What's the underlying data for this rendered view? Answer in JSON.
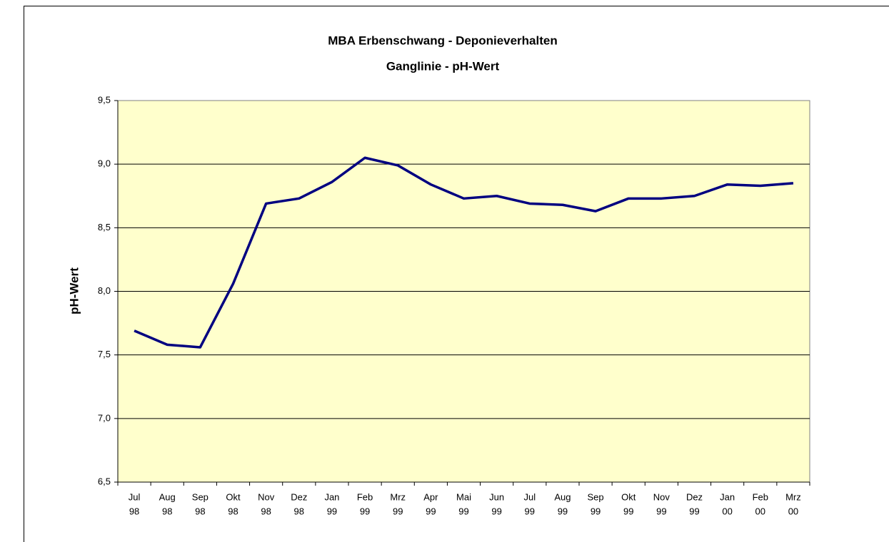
{
  "chart_data": {
    "type": "line",
    "title": "MBA Erbenschwang - Deponieverhalten",
    "subtitle": "Ganglinie - pH-Wert",
    "y_label": "pH-Wert",
    "categories": [
      [
        "Jul",
        "98"
      ],
      [
        "Aug",
        "98"
      ],
      [
        "Sep",
        "98"
      ],
      [
        "Okt",
        "98"
      ],
      [
        "Nov",
        "98"
      ],
      [
        "Dez",
        "98"
      ],
      [
        "Jan",
        "99"
      ],
      [
        "Feb",
        "99"
      ],
      [
        "Mrz",
        "99"
      ],
      [
        "Apr",
        "99"
      ],
      [
        "Mai",
        "99"
      ],
      [
        "Jun",
        "99"
      ],
      [
        "Jul",
        "99"
      ],
      [
        "Aug",
        "99"
      ],
      [
        "Sep",
        "99"
      ],
      [
        "Okt",
        "99"
      ],
      [
        "Nov",
        "99"
      ],
      [
        "Dez",
        "99"
      ],
      [
        "Jan",
        "00"
      ],
      [
        "Feb",
        "00"
      ],
      [
        "Mrz",
        "00"
      ]
    ],
    "series": [
      {
        "name": "pH-Wert",
        "color": "#000080",
        "values": [
          7.69,
          7.58,
          7.56,
          8.06,
          8.69,
          8.73,
          8.86,
          9.05,
          8.99,
          8.84,
          8.73,
          8.75,
          8.69,
          8.68,
          8.63,
          8.73,
          8.73,
          8.75,
          8.84,
          8.83,
          8.85
        ]
      }
    ],
    "ylim": [
      6.5,
      9.5
    ],
    "yticks": [
      {
        "value": 6.5,
        "label": "6,5"
      },
      {
        "value": 7.0,
        "label": "7,0"
      },
      {
        "value": 7.5,
        "label": "7,5"
      },
      {
        "value": 8.0,
        "label": "8,0"
      },
      {
        "value": 8.5,
        "label": "8,5"
      },
      {
        "value": 9.0,
        "label": "9,0"
      },
      {
        "value": 9.5,
        "label": "9,5"
      }
    ],
    "grid": true,
    "plot_background": "#ffffcc"
  }
}
